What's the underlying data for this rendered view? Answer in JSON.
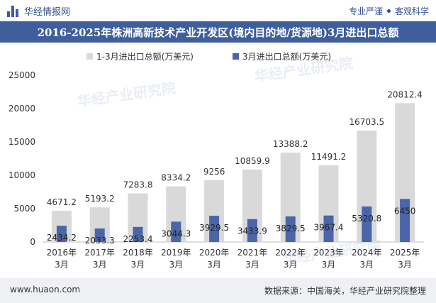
{
  "header": {
    "brand": "华经情报网",
    "tagline_left": "专业严谨",
    "tagline_right": "客观科学",
    "brand_icon": "bar-chart-logo-icon"
  },
  "title": "2016-2025年株洲高新技术产业开发区(境内目的地/货源地)3月进出口总额",
  "footer": {
    "url": "www.huaon.com",
    "source": "数据来源：中国海关，华经产业研究院整理"
  },
  "watermark": {
    "text_cn": "华经产业研究院",
    "text_url": "www.huaon.com"
  },
  "colors": {
    "title_bg": "#3f5f9c",
    "series_total": "#d9d9d9",
    "series_march": "#4a65a8",
    "footer_bg": "#eef0f4"
  },
  "chart_data": {
    "type": "bar",
    "categories": [
      "2016年\n3月",
      "2017年\n3月",
      "2018年\n3月",
      "2019年\n3月",
      "2020年\n3月",
      "2021年\n3月",
      "2022年\n3月",
      "2023年\n3月",
      "2024年\n3月",
      "2025年\n3月"
    ],
    "series": [
      {
        "name": "1-3月进出口总额(万美元)",
        "values": [
          4671.2,
          5193.2,
          7283.8,
          8334.2,
          9256,
          10859.9,
          13388.2,
          11491.2,
          16703.5,
          20812.4
        ]
      },
      {
        "name": "3月进出口总额(万美元)",
        "values": [
          2434.2,
          2033.3,
          2253.4,
          3044.3,
          3929.5,
          3433.9,
          3829.5,
          3967.4,
          5320.8,
          6450
        ]
      }
    ],
    "value_labels_total": [
      "4671.2",
      "5193.2",
      "7283.8",
      "8334.2",
      "9256",
      "10859.9",
      "13388.2",
      "11491.2",
      "16703.5",
      "20812.4"
    ],
    "value_labels_march": [
      "2434.2",
      "2033.3",
      "2253.4",
      "3044.3",
      "3929.5",
      "3433.9",
      "3829.5",
      "3967.4",
      "5320.8",
      "6450"
    ],
    "yticks": [
      "0",
      "5000",
      "10000",
      "15000",
      "20000",
      "25000"
    ],
    "ylim": [
      0,
      25000
    ],
    "legend_position": "top-center",
    "grid": false
  }
}
